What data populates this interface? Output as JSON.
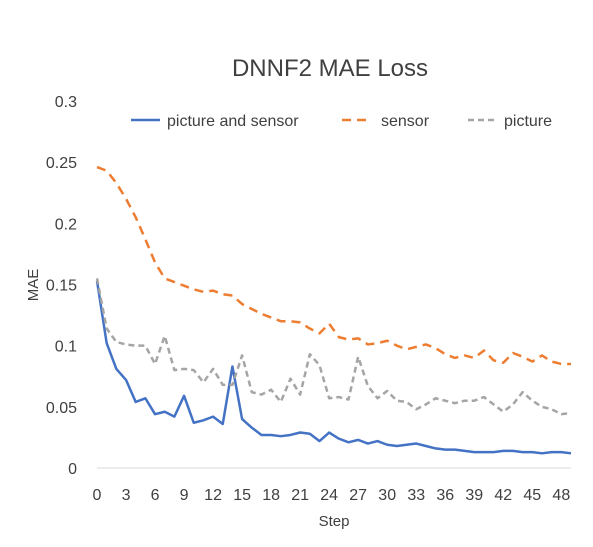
{
  "chart_data": {
    "type": "line",
    "title": "DNNF2 MAE Loss",
    "xlabel": "Step",
    "ylabel": "MAE",
    "xlim": [
      0,
      49
    ],
    "ylim": [
      0,
      0.3
    ],
    "x_ticks": [
      0,
      3,
      6,
      9,
      12,
      15,
      18,
      21,
      24,
      27,
      30,
      33,
      36,
      39,
      42,
      45,
      48
    ],
    "y_ticks": [
      0,
      0.05,
      0.1,
      0.15,
      0.2,
      0.25,
      0.3
    ],
    "x_tick_labels": [
      "0",
      "3",
      "6",
      "9",
      "12",
      "15",
      "18",
      "21",
      "24",
      "27",
      "30",
      "33",
      "36",
      "39",
      "42",
      "45",
      "48"
    ],
    "y_tick_labels": [
      "0",
      "0.05",
      "0.1",
      "0.15",
      "0.2",
      "0.25",
      "0.3"
    ],
    "grid": false,
    "legend_position": "top",
    "x": [
      0,
      1,
      2,
      3,
      4,
      5,
      6,
      7,
      8,
      9,
      10,
      11,
      12,
      13,
      14,
      15,
      16,
      17,
      18,
      19,
      20,
      21,
      22,
      23,
      24,
      25,
      26,
      27,
      28,
      29,
      30,
      31,
      32,
      33,
      34,
      35,
      36,
      37,
      38,
      39,
      40,
      41,
      42,
      43,
      44,
      45,
      46,
      47,
      48,
      49
    ],
    "series": [
      {
        "name": "picture and sensor",
        "color": "#4472c4",
        "dash": "solid",
        "values": [
          0.153,
          0.102,
          0.081,
          0.072,
          0.054,
          0.057,
          0.044,
          0.046,
          0.042,
          0.059,
          0.037,
          0.039,
          0.042,
          0.036,
          0.083,
          0.04,
          0.033,
          0.027,
          0.027,
          0.026,
          0.027,
          0.029,
          0.028,
          0.022,
          0.029,
          0.024,
          0.021,
          0.023,
          0.02,
          0.022,
          0.019,
          0.018,
          0.019,
          0.02,
          0.018,
          0.016,
          0.015,
          0.015,
          0.014,
          0.013,
          0.013,
          0.013,
          0.014,
          0.014,
          0.013,
          0.013,
          0.012,
          0.013,
          0.013,
          0.012
        ]
      },
      {
        "name": "sensor",
        "color": "#ed7d31",
        "dash": "dashed",
        "values": [
          0.246,
          0.243,
          0.233,
          0.22,
          0.205,
          0.187,
          0.168,
          0.155,
          0.152,
          0.149,
          0.146,
          0.144,
          0.145,
          0.142,
          0.141,
          0.134,
          0.13,
          0.126,
          0.123,
          0.12,
          0.12,
          0.119,
          0.114,
          0.11,
          0.118,
          0.107,
          0.105,
          0.106,
          0.101,
          0.102,
          0.104,
          0.1,
          0.097,
          0.099,
          0.101,
          0.098,
          0.093,
          0.09,
          0.092,
          0.09,
          0.096,
          0.088,
          0.086,
          0.094,
          0.091,
          0.087,
          0.092,
          0.087,
          0.085,
          0.085
        ]
      },
      {
        "name": "picture",
        "color": "#a5a5a5",
        "dash": "dashed",
        "values": [
          0.155,
          0.114,
          0.103,
          0.101,
          0.1,
          0.1,
          0.085,
          0.108,
          0.08,
          0.081,
          0.08,
          0.07,
          0.081,
          0.068,
          0.068,
          0.092,
          0.062,
          0.06,
          0.064,
          0.054,
          0.073,
          0.06,
          0.093,
          0.084,
          0.057,
          0.058,
          0.056,
          0.091,
          0.067,
          0.057,
          0.063,
          0.055,
          0.054,
          0.048,
          0.052,
          0.057,
          0.055,
          0.053,
          0.055,
          0.055,
          0.058,
          0.052,
          0.046,
          0.052,
          0.062,
          0.055,
          0.05,
          0.048,
          0.044,
          0.045
        ]
      }
    ]
  }
}
